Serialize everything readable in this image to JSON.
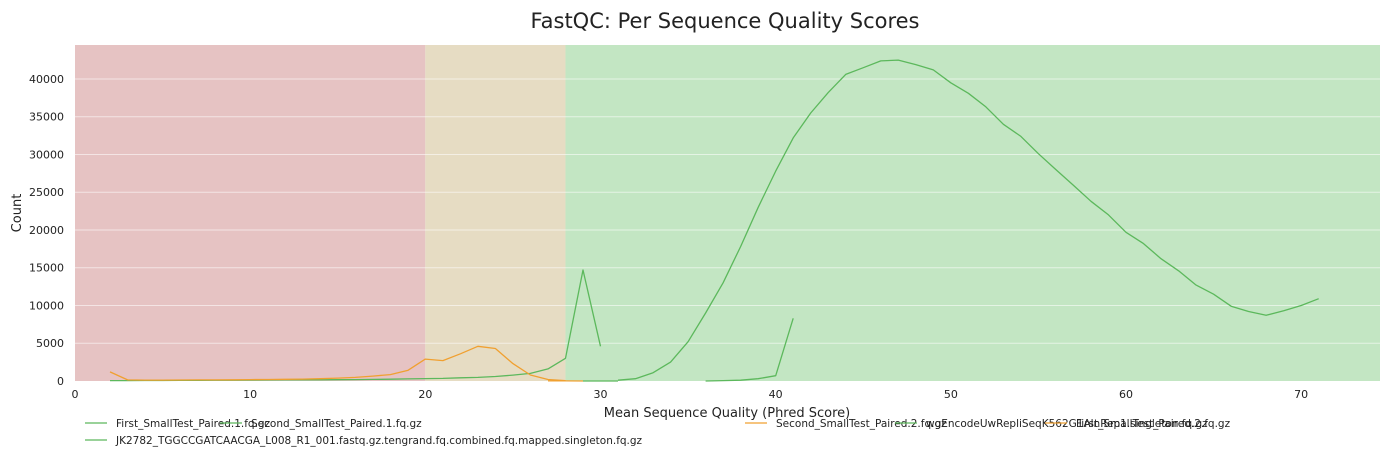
{
  "chart_data": {
    "type": "line",
    "title": "FastQC: Per Sequence Quality Scores",
    "xlabel": "Mean Sequence Quality (Phred Score)",
    "ylabel": "Count",
    "xlim": [
      0,
      74.5
    ],
    "ylim": [
      0,
      44500
    ],
    "xticks": [
      0,
      10,
      20,
      30,
      40,
      50,
      60,
      70
    ],
    "yticks": [
      0,
      5000,
      10000,
      15000,
      20000,
      25000,
      30000,
      35000,
      40000
    ],
    "grid": true,
    "legend_position": "bottom",
    "background_bands": [
      {
        "from": 0,
        "to": 20,
        "color": "#e6c3c3"
      },
      {
        "from": 20,
        "to": 28,
        "color": "#e6dcc3"
      },
      {
        "from": 28,
        "to": 74.5,
        "color": "#c3e6c3"
      }
    ],
    "series": [
      {
        "name": "First_SmallTest_Paired.1.fq.gz",
        "color": "#5cb85c",
        "x": [
          2,
          3,
          4,
          5,
          6,
          7,
          8,
          9,
          10,
          11,
          12,
          13,
          14,
          15,
          16,
          17,
          18,
          19,
          20,
          21,
          22,
          23,
          24,
          25,
          26,
          27,
          28,
          29,
          30
        ],
        "y": [
          50,
          50,
          60,
          70,
          80,
          90,
          100,
          110,
          120,
          130,
          140,
          150,
          160,
          170,
          190,
          210,
          240,
          280,
          320,
          350,
          420,
          480,
          600,
          780,
          1000,
          1600,
          3000,
          14700,
          4600
        ]
      },
      {
        "name": "JK2782_TGGCCGATCAACGA_L008_R1_001.fastq.gz.tengrand.fq.combined.fq.mapped.singleton.fq.gz",
        "color": "#5cb85c",
        "x": [
          31,
          32,
          33,
          34,
          35,
          36,
          37,
          38,
          39,
          40,
          41,
          42,
          43,
          44,
          45,
          46,
          47,
          48,
          49,
          50,
          51,
          52,
          53,
          54,
          55,
          56,
          57,
          58,
          59,
          60,
          61,
          62,
          63,
          64,
          65,
          66,
          67,
          68,
          69,
          70,
          71
        ],
        "y": [
          100,
          300,
          1100,
          2500,
          5200,
          9000,
          13000,
          17800,
          23000,
          27800,
          32200,
          35500,
          38200,
          40600,
          41500,
          42400,
          42500,
          41900,
          41200,
          39500,
          38100,
          36300,
          34000,
          32400,
          30100,
          28000,
          25900,
          23800,
          22000,
          19700,
          18200,
          16200,
          14600,
          12700,
          11500,
          9900,
          9200,
          8700,
          9300,
          10000,
          10900
        ]
      },
      {
        "name": "Second_SmallTest_Paired.1.fq.gz",
        "color": "#5cb85c",
        "x": [
          36,
          37,
          38,
          39,
          40,
          41
        ],
        "y": [
          0,
          50,
          100,
          300,
          700,
          8300
        ]
      },
      {
        "name": "Second_SmallTest_Paired.2.fq.gz",
        "color": "#f0a030",
        "x": [
          27,
          28,
          29
        ],
        "y": [
          20,
          10,
          0
        ]
      },
      {
        "name": "wgEncodeUwRepliSeqK562G1AlnRep1.singleton.fq.gz",
        "color": "#5cb85c",
        "x": [
          29,
          30,
          31
        ],
        "y": [
          0,
          0,
          0
        ]
      },
      {
        "name": "First_SmallTest_Paired.2.fq.gz",
        "color": "#f0a030",
        "x": [
          2,
          3,
          4,
          5,
          6,
          7,
          8,
          9,
          10,
          11,
          12,
          13,
          14,
          15,
          16,
          17,
          18,
          19,
          20,
          21,
          22,
          23,
          24,
          25,
          26,
          27,
          28
        ],
        "y": [
          1200,
          150,
          120,
          120,
          130,
          140,
          150,
          160,
          180,
          200,
          220,
          250,
          300,
          380,
          480,
          650,
          850,
          1400,
          2900,
          2700,
          3600,
          4600,
          4300,
          2300,
          800,
          200,
          50
        ]
      }
    ]
  }
}
